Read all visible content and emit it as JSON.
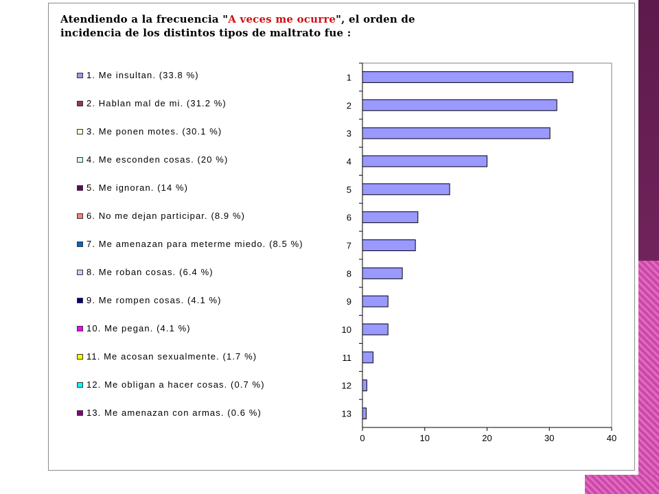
{
  "heading": {
    "line1_pre": "Atendiendo a la frecuencia \"",
    "line1_red": "A veces me ocurre",
    "line1_post": "\", el orden de",
    "line2": "incidencia de los distintos tipos de maltrato fue :"
  },
  "legend": [
    {
      "text": "1.   Me insultan. (33.8 %)",
      "color": "#9999ff"
    },
    {
      "text": "2.   Hablan mal de mi.  (31.2 %)",
      "color": "#993366"
    },
    {
      "text": "3.   Me ponen motes. (30.1 %)",
      "color": "#ffffcc"
    },
    {
      "text": "4.   Me esconden cosas. (20 %)",
      "color": "#ccffff"
    },
    {
      "text": "5.   Me ignoran. (14 %)",
      "color": "#660066"
    },
    {
      "text": "6.   No me dejan participar. (8.9 %)",
      "color": "#ff8080"
    },
    {
      "text": "7.   Me amenazan para meterme miedo. (8.5 %)",
      "color": "#0066cc"
    },
    {
      "text": "8.   Me roban cosas. (6.4 %)",
      "color": "#ccccff"
    },
    {
      "text": "9.   Me rompen cosas. (4.1 %)",
      "color": "#000080"
    },
    {
      "text": "10.   Me pegan. (4.1 %)",
      "color": "#ff00ff"
    },
    {
      "text": "11.   Me acosan sexualmente. (1.7 %)",
      "color": "#ffff00"
    },
    {
      "text": "12.   Me obligan a hacer cosas. (0.7 %)",
      "color": "#00ffff"
    },
    {
      "text": "13.   Me amenazan con armas. (0.6 %)",
      "color": "#800080"
    }
  ],
  "chart_data": {
    "type": "bar",
    "orientation": "horizontal",
    "categories": [
      "1",
      "2",
      "3",
      "4",
      "5",
      "6",
      "7",
      "8",
      "9",
      "10",
      "11",
      "12",
      "13"
    ],
    "values": [
      33.8,
      31.2,
      30.1,
      20,
      14,
      8.9,
      8.5,
      6.4,
      4.1,
      4.1,
      1.7,
      0.7,
      0.6
    ],
    "xlim": [
      0,
      40
    ],
    "xticks": [
      "0",
      "10",
      "20",
      "30",
      "40"
    ],
    "bar_color": "#9999ff",
    "grid": false,
    "legend_position": "left"
  }
}
